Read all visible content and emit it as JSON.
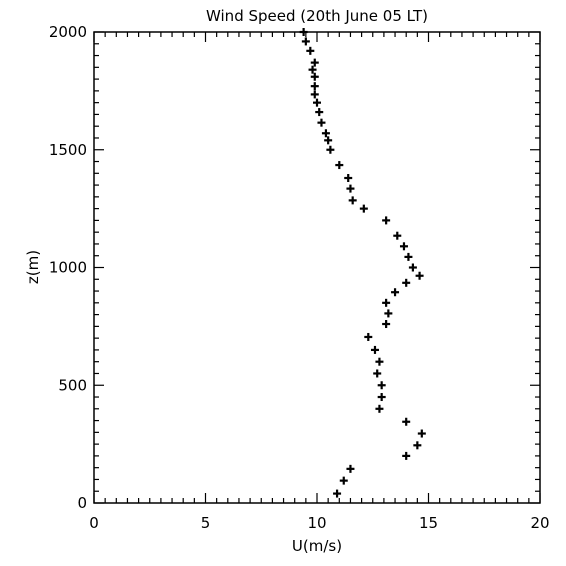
{
  "chart_data": {
    "type": "scatter",
    "title": "Wind Speed (20th June 05 LT)",
    "xlabel": "U(m/s)",
    "ylabel": "z(m)",
    "xlim": [
      0,
      20
    ],
    "ylim": [
      0,
      2000
    ],
    "xticks": [
      "0",
      "5",
      "10",
      "15",
      "20"
    ],
    "yticks": [
      "0",
      "500",
      "1000",
      "1500",
      "2000"
    ],
    "marker": "plus",
    "grid": false,
    "series": [
      {
        "x": [
          10.9,
          11.2,
          11.5,
          14.0,
          14.5,
          14.7,
          14.0,
          12.8,
          12.9,
          12.9,
          12.7,
          12.8,
          12.6,
          12.3,
          13.1,
          13.2,
          13.1,
          13.5,
          14.0,
          14.6,
          14.3,
          14.1,
          13.9,
          13.6,
          13.1,
          12.1,
          11.6,
          11.5,
          11.4,
          11.0,
          10.6,
          10.5,
          10.4,
          10.2,
          10.1,
          10.0,
          9.9,
          9.9,
          9.9,
          9.8,
          9.9,
          9.7,
          9.5,
          9.4
        ],
        "y": [
          40,
          95,
          145,
          200,
          245,
          295,
          345,
          400,
          450,
          500,
          550,
          600,
          650,
          705,
          760,
          805,
          850,
          895,
          935,
          965,
          1000,
          1045,
          1090,
          1135,
          1200,
          1250,
          1285,
          1335,
          1380,
          1435,
          1500,
          1540,
          1570,
          1615,
          1660,
          1700,
          1735,
          1770,
          1810,
          1840,
          1870,
          1920,
          1960,
          2000
        ]
      }
    ]
  }
}
